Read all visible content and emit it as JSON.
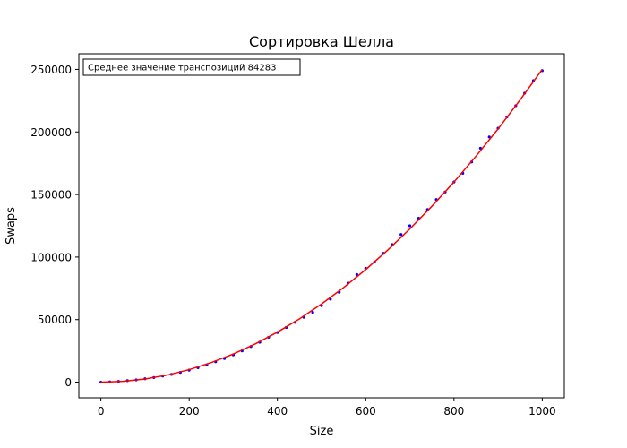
{
  "chart_data": {
    "type": "scatter",
    "title": "Сортировка Шелла",
    "xlabel": "Size",
    "ylabel": "Swaps",
    "xlim": [
      -50,
      1050
    ],
    "ylim": [
      -12500,
      262500
    ],
    "xticks": [
      0,
      200,
      400,
      600,
      800,
      1000
    ],
    "yticks": [
      0,
      50000,
      100000,
      150000,
      200000,
      250000
    ],
    "annotation": "Среднее значение транспозиций 84283",
    "grid": false,
    "series": [
      {
        "kind": "points",
        "color": "#0000ff",
        "x": [
          0,
          20,
          40,
          60,
          80,
          100,
          120,
          140,
          160,
          180,
          200,
          220,
          240,
          260,
          280,
          300,
          320,
          340,
          360,
          380,
          400,
          420,
          440,
          460,
          480,
          500,
          520,
          540,
          560,
          580,
          600,
          620,
          640,
          660,
          680,
          700,
          720,
          740,
          760,
          780,
          800,
          820,
          840,
          860,
          880,
          900,
          920,
          940,
          960,
          980,
          1000
        ],
        "y": [
          0,
          200,
          600,
          1200,
          1800,
          2700,
          3700,
          4900,
          6200,
          7800,
          9600,
          11600,
          13800,
          16300,
          18900,
          21800,
          25000,
          28500,
          31900,
          35900,
          39700,
          43700,
          47800,
          51900,
          55800,
          61200,
          66400,
          71800,
          79300,
          86000,
          91000,
          96000,
          103000,
          110000,
          118000,
          125000,
          131000,
          138000,
          146000,
          152000,
          160000,
          167000,
          176000,
          187000,
          196000,
          203000,
          212000,
          221000,
          231000,
          241000,
          249000
        ]
      },
      {
        "kind": "line",
        "color": "#ff0000",
        "x": [
          0,
          50,
          100,
          150,
          200,
          250,
          300,
          350,
          400,
          450,
          500,
          550,
          600,
          650,
          700,
          750,
          800,
          850,
          900,
          950,
          1000
        ],
        "y": [
          0,
          625,
          2500,
          5625,
          10000,
          15625,
          22500,
          30625,
          40000,
          50625,
          62500,
          75625,
          90000,
          105625,
          122500,
          140625,
          160000,
          180625,
          202500,
          225625,
          250000
        ]
      }
    ]
  }
}
